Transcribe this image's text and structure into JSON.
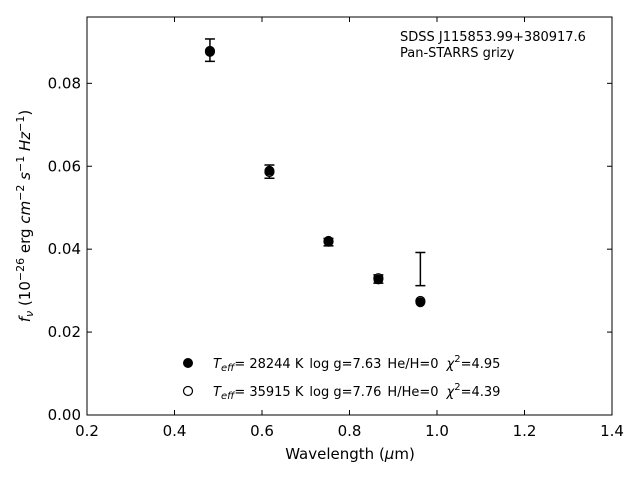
{
  "chart_data": {
    "type": "scatter",
    "xlabel": "Wavelength (μm)",
    "ylabel": "f_ν (10^-26 erg cm^-2 s^-1 Hz^-1)",
    "xlim": [
      0.2,
      1.4
    ],
    "ylim": [
      0.0,
      0.096
    ],
    "xticks": [
      0.2,
      0.4,
      0.6,
      0.8,
      1.0,
      1.2,
      1.4
    ],
    "xtick_labels": [
      "0.2",
      "0.4",
      "0.6",
      "0.8",
      "1.0",
      "1.2",
      "1.4"
    ],
    "yticks": [
      0.0,
      0.02,
      0.04,
      0.06,
      0.08
    ],
    "ytick_labels": [
      "0.00",
      "0.02",
      "0.04",
      "0.06",
      "0.08"
    ],
    "grid": false,
    "annotation": [
      "SDSS J115853.99+380917.6",
      "Pan-STARRS grizy"
    ],
    "observed": {
      "x": [
        0.481,
        0.617,
        0.752,
        0.866,
        0.962
      ],
      "y": [
        0.088,
        0.0587,
        0.0417,
        0.0328,
        0.0352
      ],
      "yerr": [
        0.0027,
        0.0016,
        0.0009,
        0.001,
        0.004
      ]
    },
    "series": [
      {
        "marker": "filled",
        "x": [
          0.481,
          0.617,
          0.752,
          0.866,
          0.962
        ],
        "y": [
          0.0876,
          0.0589,
          0.042,
          0.0327,
          0.0272
        ],
        "legend": {
          "teff": "= 28244 K",
          "logg": "log g=7.63",
          "ratio": "He/H=0",
          "chi2": "=4.95"
        }
      },
      {
        "marker": "open",
        "x": [
          0.481,
          0.617,
          0.752,
          0.866,
          0.962
        ],
        "y": [
          0.0878,
          0.0586,
          0.0418,
          0.033,
          0.0275
        ],
        "legend": {
          "teff": "= 35915 K",
          "logg": "log g=7.76",
          "ratio": "H/He=0",
          "chi2": "=4.39"
        }
      }
    ],
    "legend_position": "lower center"
  }
}
